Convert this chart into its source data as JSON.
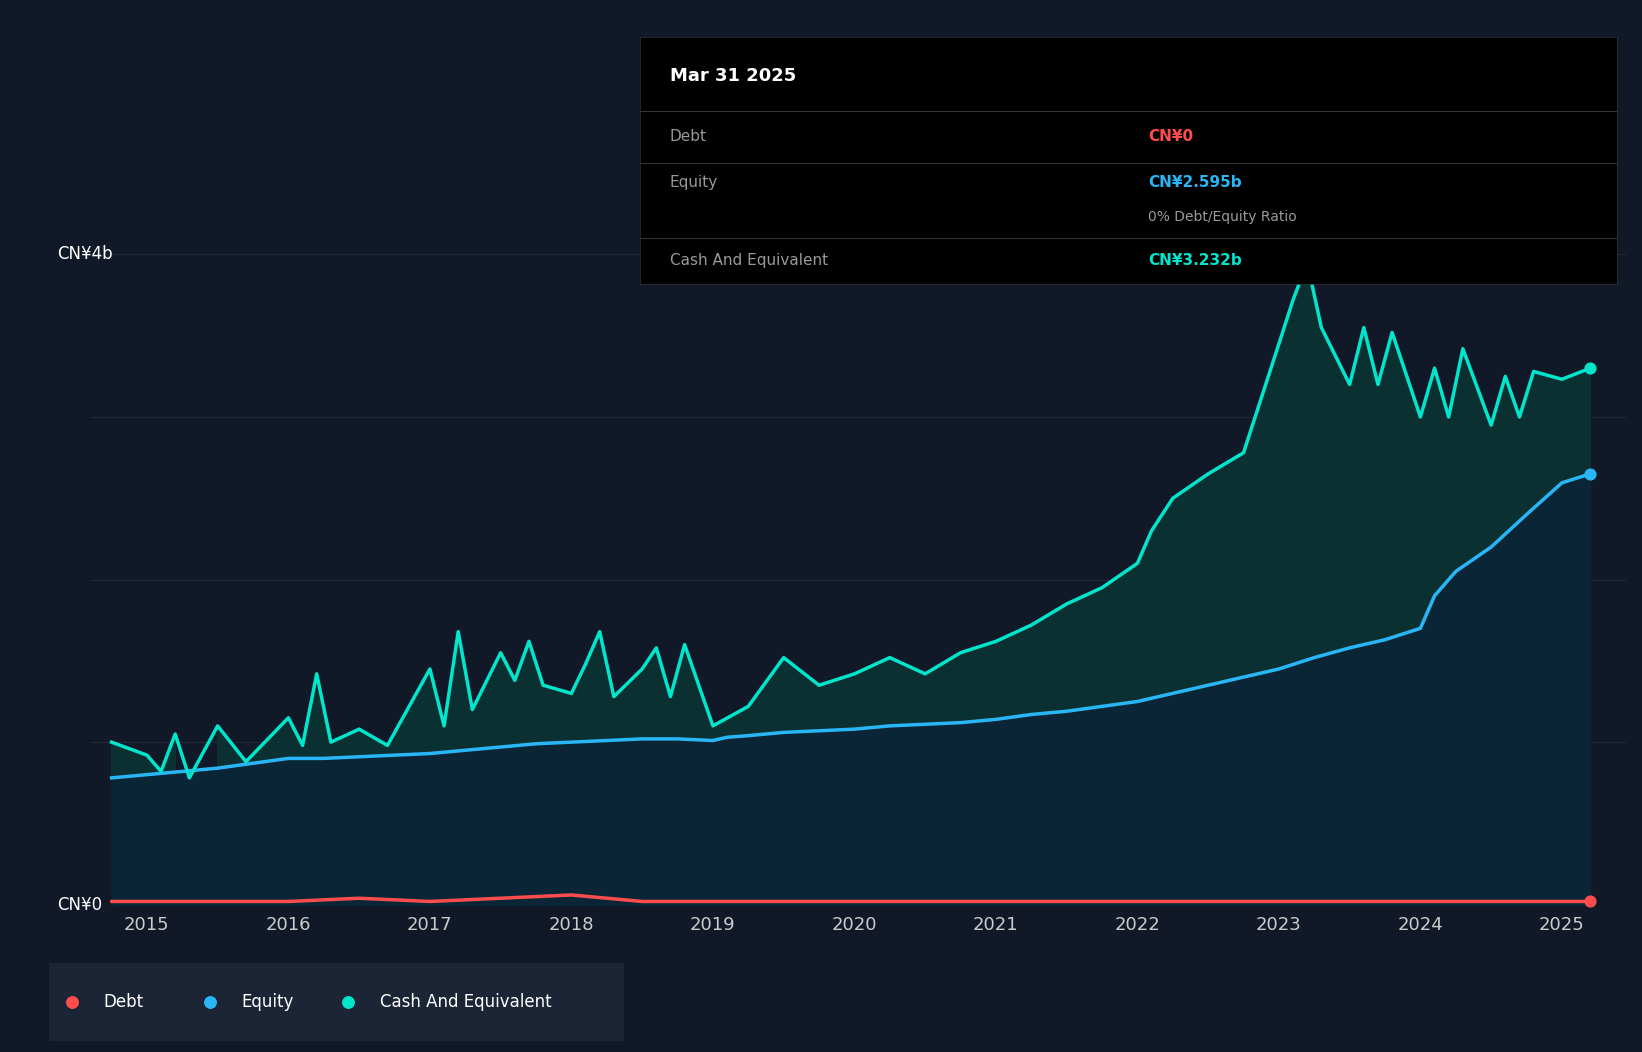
{
  "bg_color": "#111827",
  "plot_bg_color": "#111827",
  "chart_area_color": "#0d1b2a",
  "grid_color": "#2a3545",
  "ylabel_text": "CN¥4b",
  "ylabel2_text": "CN¥0",
  "x_ticks": [
    2015,
    2016,
    2017,
    2018,
    2019,
    2020,
    2021,
    2022,
    2023,
    2024,
    2025
  ],
  "ylim": [
    0,
    4.4
  ],
  "xlim": [
    2014.6,
    2025.45
  ],
  "debt_color": "#ff4d4d",
  "equity_color": "#29b6f6",
  "cash_color": "#00e5cc",
  "equity_fill_top": "#003d5c",
  "equity_fill_bot": "#001525",
  "cash_fill_color": "#004d4d",
  "tooltip_bg": "#000000",
  "tooltip_title": "Mar 31 2025",
  "tooltip_debt_label": "Debt",
  "tooltip_debt_value": "CN¥0",
  "tooltip_debt_value_color": "#ff4d4d",
  "tooltip_equity_label": "Equity",
  "tooltip_equity_value": "CN¥2.595b",
  "tooltip_equity_value_color": "#29b6f6",
  "tooltip_ratio_text": "0% Debt/Equity Ratio",
  "tooltip_cash_label": "Cash And Equivalent",
  "tooltip_cash_value": "CN¥3.232b",
  "tooltip_cash_value_color": "#00e5cc",
  "legend_items": [
    "Debt",
    "Equity",
    "Cash And Equivalent"
  ],
  "legend_colors": [
    "#ff4d4d",
    "#29b6f6",
    "#00e5cc"
  ],
  "equity_x": [
    2014.75,
    2015.0,
    2015.25,
    2015.5,
    2015.75,
    2016.0,
    2016.25,
    2016.5,
    2016.75,
    2017.0,
    2017.25,
    2017.5,
    2017.75,
    2018.0,
    2018.25,
    2018.5,
    2018.75,
    2019.0,
    2019.1,
    2019.25,
    2019.5,
    2019.75,
    2020.0,
    2020.25,
    2020.5,
    2020.75,
    2021.0,
    2021.25,
    2021.5,
    2021.75,
    2022.0,
    2022.25,
    2022.5,
    2022.75,
    2023.0,
    2023.25,
    2023.5,
    2023.75,
    2024.0,
    2024.1,
    2024.25,
    2024.5,
    2024.75,
    2025.0,
    2025.2
  ],
  "equity_y": [
    0.78,
    0.8,
    0.82,
    0.84,
    0.87,
    0.9,
    0.9,
    0.91,
    0.92,
    0.93,
    0.95,
    0.97,
    0.99,
    1.0,
    1.01,
    1.02,
    1.02,
    1.01,
    1.03,
    1.04,
    1.06,
    1.07,
    1.08,
    1.1,
    1.11,
    1.12,
    1.14,
    1.17,
    1.19,
    1.22,
    1.25,
    1.3,
    1.35,
    1.4,
    1.45,
    1.52,
    1.58,
    1.63,
    1.7,
    1.9,
    2.05,
    2.2,
    2.4,
    2.595,
    2.65
  ],
  "cash_x": [
    2014.75,
    2015.0,
    2015.1,
    2015.2,
    2015.3,
    2015.5,
    2015.7,
    2016.0,
    2016.1,
    2016.2,
    2016.3,
    2016.5,
    2016.7,
    2017.0,
    2017.1,
    2017.2,
    2017.3,
    2017.5,
    2017.6,
    2017.7,
    2017.8,
    2018.0,
    2018.1,
    2018.2,
    2018.3,
    2018.5,
    2018.6,
    2018.7,
    2018.8,
    2019.0,
    2019.25,
    2019.5,
    2019.75,
    2020.0,
    2020.25,
    2020.5,
    2020.75,
    2021.0,
    2021.25,
    2021.5,
    2021.75,
    2022.0,
    2022.1,
    2022.25,
    2022.5,
    2022.75,
    2023.0,
    2023.1,
    2023.2,
    2023.3,
    2023.5,
    2023.6,
    2023.7,
    2023.8,
    2024.0,
    2024.1,
    2024.2,
    2024.3,
    2024.5,
    2024.6,
    2024.7,
    2024.8,
    2025.0,
    2025.2
  ],
  "cash_y": [
    1.0,
    0.92,
    0.82,
    1.05,
    0.78,
    1.1,
    0.88,
    1.15,
    0.98,
    1.42,
    1.0,
    1.08,
    0.98,
    1.45,
    1.1,
    1.68,
    1.2,
    1.55,
    1.38,
    1.62,
    1.35,
    1.3,
    1.48,
    1.68,
    1.28,
    1.45,
    1.58,
    1.28,
    1.6,
    1.1,
    1.22,
    1.52,
    1.35,
    1.42,
    1.52,
    1.42,
    1.55,
    1.62,
    1.72,
    1.85,
    1.95,
    2.1,
    2.3,
    2.5,
    2.65,
    2.78,
    3.45,
    3.72,
    3.95,
    3.55,
    3.2,
    3.55,
    3.2,
    3.52,
    3.0,
    3.3,
    3.0,
    3.42,
    2.95,
    3.25,
    3.0,
    3.28,
    3.232,
    3.3
  ],
  "debt_x": [
    2014.75,
    2016.0,
    2016.5,
    2017.0,
    2018.0,
    2018.5,
    2019.0,
    2020.0,
    2021.0,
    2022.0,
    2023.0,
    2024.0,
    2025.0,
    2025.2
  ],
  "debt_y": [
    0.02,
    0.02,
    0.04,
    0.02,
    0.06,
    0.02,
    0.02,
    0.02,
    0.02,
    0.02,
    0.02,
    0.02,
    0.02,
    0.02
  ]
}
